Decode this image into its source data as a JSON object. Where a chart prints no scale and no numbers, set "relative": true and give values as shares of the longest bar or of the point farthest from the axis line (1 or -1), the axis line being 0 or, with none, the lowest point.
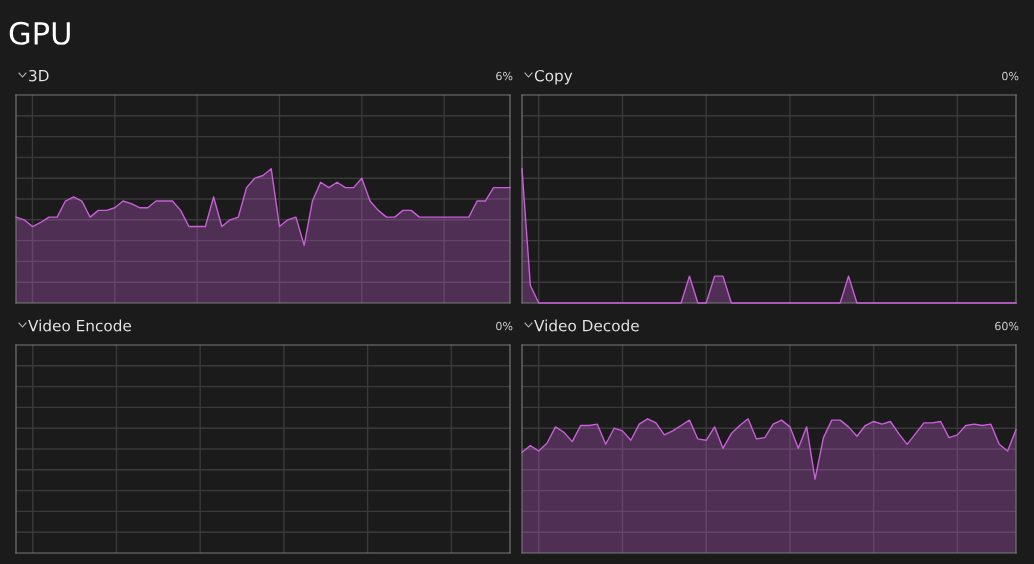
{
  "chart_data": [
    {
      "type": "other",
      "title": "GPU"
    },
    {
      "type": "area",
      "title": "3D",
      "annotations": [
        "6%"
      ],
      "relative": true,
      "grid": true,
      "categories": [
        null,
        null,
        null,
        null,
        null,
        null,
        null,
        null,
        null,
        null,
        null,
        null,
        null,
        null,
        null,
        null,
        null,
        null,
        null,
        null,
        null,
        null,
        null,
        null,
        null,
        null,
        null,
        null,
        null,
        null,
        null,
        null,
        null,
        null,
        null,
        null,
        null,
        null,
        null,
        null,
        null,
        null,
        null,
        null,
        null,
        null,
        null,
        null,
        null,
        null,
        null,
        null,
        null,
        null,
        null,
        null,
        null,
        null,
        null,
        null,
        null
      ],
      "series": [
        {
          "color": "#c95fd9",
          "values": [
            0.64,
            0.62,
            0.57,
            0.6,
            0.64,
            0.64,
            0.76,
            0.79,
            0.76,
            0.64,
            0.69,
            0.69,
            0.71,
            0.76,
            0.74,
            0.71,
            0.71,
            0.76,
            0.76,
            0.76,
            0.69,
            0.57,
            0.57,
            0.57,
            0.79,
            0.57,
            0.62,
            0.64,
            0.86,
            0.93,
            0.95,
            1,
            0.57,
            0.62,
            0.64,
            0.43,
            0.76,
            0.9,
            0.86,
            0.9,
            0.86,
            0.86,
            0.93,
            0.76,
            0.69,
            0.64,
            0.64,
            0.69,
            0.69,
            0.64,
            0.64,
            0.64,
            0.64,
            0.64,
            0.64,
            0.64,
            0.76,
            0.76,
            0.86,
            0.86,
            0.86
          ]
        }
      ]
    },
    {
      "type": "area",
      "title": "Copy",
      "annotations": [
        "0%"
      ],
      "relative": true,
      "grid": true,
      "categories": [
        null,
        null,
        null,
        null,
        null,
        null,
        null,
        null,
        null,
        null,
        null,
        null,
        null,
        null,
        null,
        null,
        null,
        null,
        null,
        null,
        null,
        null,
        null,
        null,
        null,
        null,
        null,
        null,
        null,
        null,
        null,
        null,
        null,
        null,
        null,
        null,
        null,
        null,
        null,
        null,
        null,
        null,
        null,
        null,
        null,
        null,
        null,
        null,
        null,
        null,
        null,
        null,
        null,
        null,
        null,
        null,
        null,
        null,
        null,
        null
      ],
      "series": [
        {
          "color": "#c95fd9",
          "values": [
            1,
            0.13,
            0,
            0,
            0,
            0,
            0,
            0,
            0,
            0,
            0,
            0,
            0,
            0,
            0,
            0,
            0,
            0,
            0,
            0,
            0.2,
            0,
            0,
            0.2,
            0.2,
            0,
            0,
            0,
            0,
            0,
            0,
            0,
            0,
            0,
            0,
            0,
            0,
            0,
            0,
            0.2,
            0,
            0,
            0,
            0,
            0,
            0,
            0,
            0,
            0,
            0,
            0,
            0,
            0,
            0,
            0,
            0,
            0,
            0,
            0,
            0
          ]
        }
      ]
    },
    {
      "type": "other",
      "title": "Video Encode",
      "annotations": [
        "0%"
      ]
    },
    {
      "type": "area",
      "title": "Video Decode",
      "annotations": [
        "60%"
      ],
      "relative": true,
      "grid": true,
      "categories": [
        null,
        null,
        null,
        null,
        null,
        null,
        null,
        null,
        null,
        null,
        null,
        null,
        null,
        null,
        null,
        null,
        null,
        null,
        null,
        null,
        null,
        null,
        null,
        null,
        null,
        null,
        null,
        null,
        null,
        null,
        null,
        null,
        null,
        null,
        null,
        null,
        null,
        null,
        null,
        null,
        null,
        null,
        null,
        null,
        null,
        null,
        null,
        null,
        null,
        null,
        null,
        null,
        null,
        null,
        null,
        null,
        null,
        null,
        null,
        null
      ],
      "series": [
        {
          "color": "#c95fd9",
          "values": [
            0.75,
            0.8,
            0.76,
            0.82,
            0.94,
            0.9,
            0.83,
            0.95,
            0.95,
            0.96,
            0.81,
            0.93,
            0.91,
            0.84,
            0.96,
            1,
            0.97,
            0.88,
            0.91,
            0.95,
            0.99,
            0.85,
            0.84,
            0.94,
            0.78,
            0.89,
            0.95,
            1,
            0.85,
            0.86,
            0.96,
            0.99,
            0.94,
            0.78,
            0.94,
            0.55,
            0.86,
            0.99,
            0.99,
            0.94,
            0.87,
            0.95,
            0.98,
            0.96,
            0.98,
            0.89,
            0.81,
            0.89,
            0.97,
            0.97,
            0.98,
            0.86,
            0.88,
            0.95,
            0.96,
            0.95,
            0.96,
            0.81,
            0.76,
            0.92
          ]
        }
      ]
    }
  ]
}
